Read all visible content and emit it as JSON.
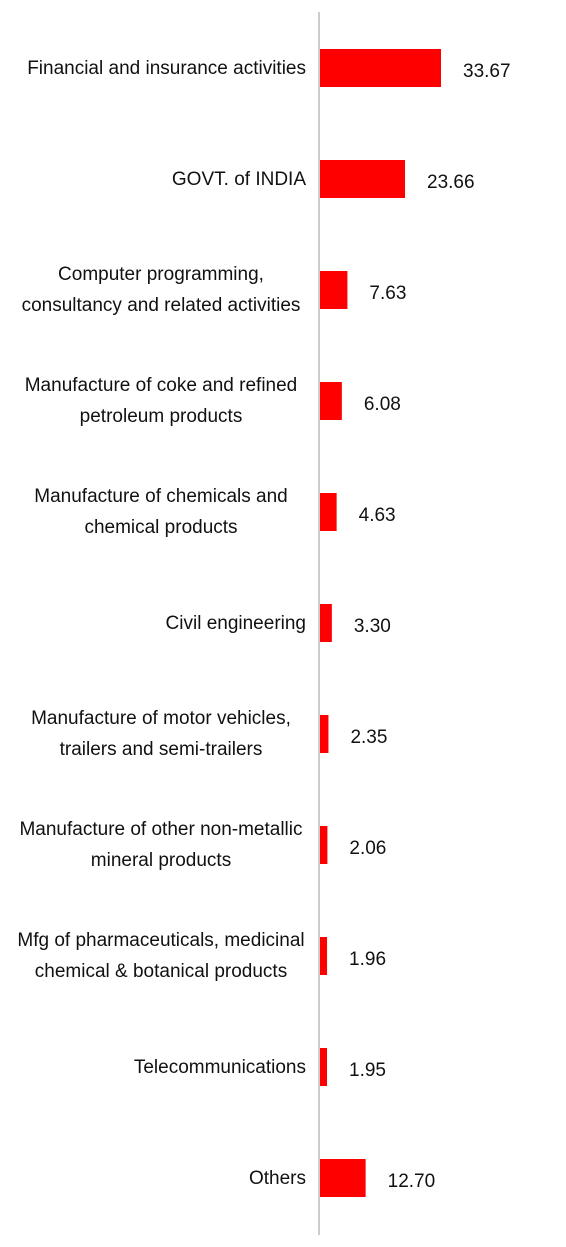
{
  "chart_data": {
    "type": "bar",
    "orientation": "horizontal",
    "color": "#ff0000",
    "categories": [
      "Financial and insurance activities",
      "GOVT. of INDIA",
      "Computer programming, consultancy and related activities",
      "Manufacture of coke and refined petroleum products",
      "Manufacture of chemicals and chemical products",
      "Civil engineering",
      "Manufacture of motor vehicles, trailers and semi-trailers",
      "Manufacture of other non-metallic mineral products",
      "Mfg of pharmaceuticals, medicinal chemical & botanical products",
      "Telecommunications",
      "Others"
    ],
    "values": [
      33.67,
      23.66,
      7.63,
      6.08,
      4.63,
      3.3,
      2.35,
      2.06,
      1.96,
      1.95,
      12.7
    ],
    "value_labels": [
      "33.67",
      "23.66",
      "7.63",
      "6.08",
      "4.63",
      "3.30",
      "2.35",
      "2.06",
      "1.96",
      "1.95",
      "12.70"
    ]
  }
}
